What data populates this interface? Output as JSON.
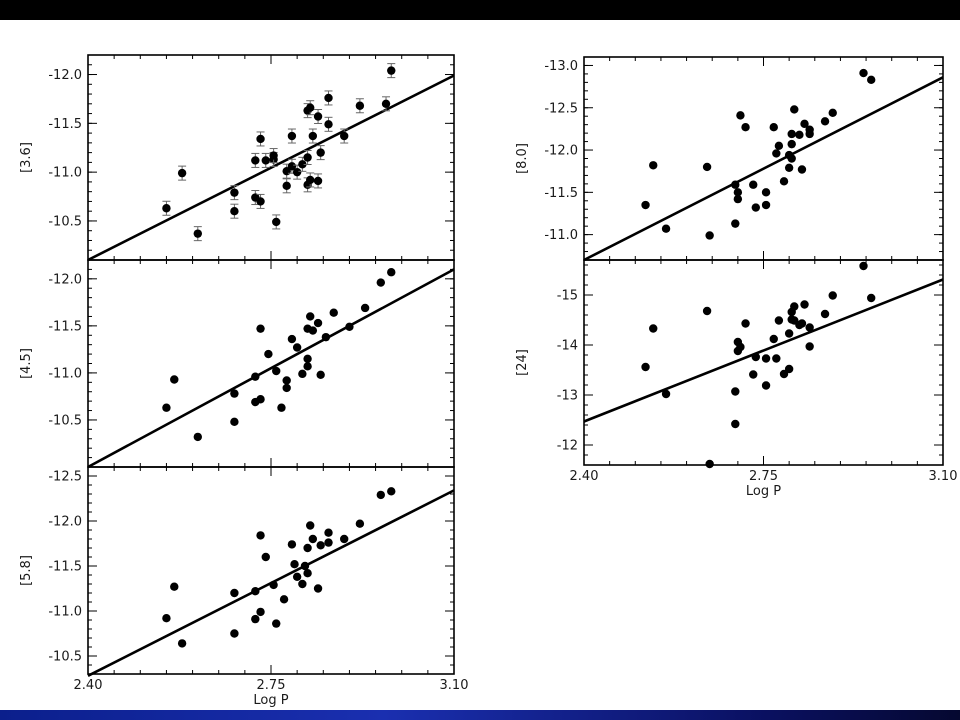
{
  "colors": {
    "top_bar": "#000000",
    "bottom_bar": "#1a2fb0",
    "marker": "#000000",
    "background": "#ffffff"
  },
  "chart_data": [
    {
      "type": "scatter",
      "ylabel": "[3.6]",
      "xlabel": "",
      "xlim": [
        2.4,
        3.1
      ],
      "ylim": [
        -10.1,
        -12.2
      ],
      "y_inverted": true,
      "yticks": [
        "-12.0",
        "-11.5",
        "-11.0",
        "-10.5"
      ],
      "xticks": [],
      "error_bars": true,
      "fit": {
        "x": [
          2.4,
          3.1
        ],
        "y": [
          -10.1,
          -11.99
        ]
      },
      "points": [
        {
          "x": 2.55,
          "y": -10.63
        },
        {
          "x": 2.58,
          "y": -10.99
        },
        {
          "x": 2.61,
          "y": -10.37
        },
        {
          "x": 2.68,
          "y": -10.6
        },
        {
          "x": 2.68,
          "y": -10.79
        },
        {
          "x": 2.72,
          "y": -11.12
        },
        {
          "x": 2.72,
          "y": -10.74
        },
        {
          "x": 2.73,
          "y": -10.7
        },
        {
          "x": 2.73,
          "y": -11.34
        },
        {
          "x": 2.74,
          "y": -11.12
        },
        {
          "x": 2.755,
          "y": -11.13
        },
        {
          "x": 2.755,
          "y": -11.17
        },
        {
          "x": 2.76,
          "y": -10.49
        },
        {
          "x": 2.78,
          "y": -10.86
        },
        {
          "x": 2.78,
          "y": -11.01
        },
        {
          "x": 2.79,
          "y": -11.37
        },
        {
          "x": 2.79,
          "y": -11.06
        },
        {
          "x": 2.8,
          "y": -11.0
        },
        {
          "x": 2.81,
          "y": -11.08
        },
        {
          "x": 2.82,
          "y": -10.87
        },
        {
          "x": 2.82,
          "y": -11.15
        },
        {
          "x": 2.82,
          "y": -11.63
        },
        {
          "x": 2.825,
          "y": -11.66
        },
        {
          "x": 2.825,
          "y": -10.92
        },
        {
          "x": 2.83,
          "y": -11.37
        },
        {
          "x": 2.84,
          "y": -11.57
        },
        {
          "x": 2.84,
          "y": -10.91
        },
        {
          "x": 2.845,
          "y": -11.2
        },
        {
          "x": 2.86,
          "y": -11.49
        },
        {
          "x": 2.86,
          "y": -11.76
        },
        {
          "x": 2.89,
          "y": -11.37
        },
        {
          "x": 2.92,
          "y": -11.68
        },
        {
          "x": 2.97,
          "y": -11.7
        },
        {
          "x": 2.98,
          "y": -12.04
        }
      ]
    },
    {
      "type": "scatter",
      "ylabel": "[4.5]",
      "xlabel": "",
      "xlim": [
        2.4,
        3.1
      ],
      "ylim": [
        -10.0,
        -12.2
      ],
      "y_inverted": true,
      "yticks": [
        "-12.0",
        "-11.5",
        "-11.0",
        "-10.5"
      ],
      "xticks": [],
      "error_bars": false,
      "fit": {
        "x": [
          2.4,
          3.1
        ],
        "y": [
          -10.0,
          -12.1
        ]
      },
      "points": [
        {
          "x": 2.55,
          "y": -10.63
        },
        {
          "x": 2.565,
          "y": -10.93
        },
        {
          "x": 2.61,
          "y": -10.32
        },
        {
          "x": 2.68,
          "y": -10.48
        },
        {
          "x": 2.68,
          "y": -10.78
        },
        {
          "x": 2.72,
          "y": -10.96
        },
        {
          "x": 2.72,
          "y": -10.69
        },
        {
          "x": 2.73,
          "y": -10.72
        },
        {
          "x": 2.73,
          "y": -11.47
        },
        {
          "x": 2.745,
          "y": -11.2
        },
        {
          "x": 2.76,
          "y": -11.02
        },
        {
          "x": 2.77,
          "y": -10.63
        },
        {
          "x": 2.78,
          "y": -10.84
        },
        {
          "x": 2.78,
          "y": -10.92
        },
        {
          "x": 2.79,
          "y": -11.36
        },
        {
          "x": 2.8,
          "y": -11.27
        },
        {
          "x": 2.81,
          "y": -10.99
        },
        {
          "x": 2.82,
          "y": -11.07
        },
        {
          "x": 2.82,
          "y": -11.47
        },
        {
          "x": 2.82,
          "y": -11.15
        },
        {
          "x": 2.825,
          "y": -11.6
        },
        {
          "x": 2.83,
          "y": -11.45
        },
        {
          "x": 2.84,
          "y": -11.53
        },
        {
          "x": 2.845,
          "y": -10.98
        },
        {
          "x": 2.855,
          "y": -11.38
        },
        {
          "x": 2.87,
          "y": -11.64
        },
        {
          "x": 2.9,
          "y": -11.49
        },
        {
          "x": 2.93,
          "y": -11.69
        },
        {
          "x": 2.96,
          "y": -11.96
        },
        {
          "x": 2.98,
          "y": -12.07
        }
      ]
    },
    {
      "type": "scatter",
      "ylabel": "[5.8]",
      "xlabel": "Log P",
      "xlim": [
        2.4,
        3.1
      ],
      "ylim": [
        -10.3,
        -12.6
      ],
      "y_inverted": true,
      "yticks": [
        "-12.5",
        "-12.0",
        "-11.5",
        "-11.0",
        "-10.5"
      ],
      "xticks": [
        "2.40",
        "2.75",
        "3.10"
      ],
      "error_bars": false,
      "fit": {
        "x": [
          2.4,
          3.1
        ],
        "y": [
          -10.28,
          -12.34
        ]
      },
      "points": [
        {
          "x": 2.55,
          "y": -10.92
        },
        {
          "x": 2.565,
          "y": -11.27
        },
        {
          "x": 2.58,
          "y": -10.64
        },
        {
          "x": 2.68,
          "y": -10.75
        },
        {
          "x": 2.68,
          "y": -11.2
        },
        {
          "x": 2.72,
          "y": -11.22
        },
        {
          "x": 2.72,
          "y": -10.91
        },
        {
          "x": 2.73,
          "y": -11.84
        },
        {
          "x": 2.73,
          "y": -10.99
        },
        {
          "x": 2.74,
          "y": -11.6
        },
        {
          "x": 2.755,
          "y": -11.29
        },
        {
          "x": 2.76,
          "y": -10.86
        },
        {
          "x": 2.775,
          "y": -11.13
        },
        {
          "x": 2.79,
          "y": -11.74
        },
        {
          "x": 2.795,
          "y": -11.52
        },
        {
          "x": 2.8,
          "y": -11.38
        },
        {
          "x": 2.81,
          "y": -11.3
        },
        {
          "x": 2.815,
          "y": -11.5
        },
        {
          "x": 2.82,
          "y": -11.7
        },
        {
          "x": 2.82,
          "y": -11.42
        },
        {
          "x": 2.825,
          "y": -11.95
        },
        {
          "x": 2.83,
          "y": -11.8
        },
        {
          "x": 2.84,
          "y": -11.25
        },
        {
          "x": 2.845,
          "y": -11.73
        },
        {
          "x": 2.86,
          "y": -11.87
        },
        {
          "x": 2.86,
          "y": -11.76
        },
        {
          "x": 2.89,
          "y": -11.8
        },
        {
          "x": 2.92,
          "y": -11.97
        },
        {
          "x": 2.96,
          "y": -12.29
        },
        {
          "x": 2.98,
          "y": -12.33
        }
      ]
    },
    {
      "type": "scatter",
      "ylabel": "[8.0]",
      "xlabel": "",
      "xlim": [
        2.4,
        3.1
      ],
      "ylim": [
        -10.7,
        -13.1
      ],
      "y_inverted": true,
      "yticks": [
        "-13.0",
        "-12.5",
        "-12.0",
        "-11.5",
        "-11.0"
      ],
      "xticks": [],
      "error_bars": false,
      "fit": {
        "x": [
          2.4,
          3.1
        ],
        "y": [
          -10.7,
          -12.86
        ]
      },
      "points": [
        {
          "x": 2.52,
          "y": -11.35
        },
        {
          "x": 2.535,
          "y": -11.82
        },
        {
          "x": 2.56,
          "y": -11.07
        },
        {
          "x": 2.64,
          "y": -11.8
        },
        {
          "x": 2.645,
          "y": -10.99
        },
        {
          "x": 2.695,
          "y": -11.13
        },
        {
          "x": 2.695,
          "y": -11.59
        },
        {
          "x": 2.7,
          "y": -11.5
        },
        {
          "x": 2.7,
          "y": -11.42
        },
        {
          "x": 2.705,
          "y": -12.41
        },
        {
          "x": 2.715,
          "y": -12.27
        },
        {
          "x": 2.73,
          "y": -11.59
        },
        {
          "x": 2.735,
          "y": -11.32
        },
        {
          "x": 2.755,
          "y": -11.35
        },
        {
          "x": 2.755,
          "y": -11.5
        },
        {
          "x": 2.77,
          "y": -12.27
        },
        {
          "x": 2.775,
          "y": -11.96
        },
        {
          "x": 2.78,
          "y": -12.05
        },
        {
          "x": 2.79,
          "y": -11.63
        },
        {
          "x": 2.8,
          "y": -11.79
        },
        {
          "x": 2.8,
          "y": -11.94
        },
        {
          "x": 2.805,
          "y": -11.9
        },
        {
          "x": 2.805,
          "y": -12.19
        },
        {
          "x": 2.805,
          "y": -12.07
        },
        {
          "x": 2.81,
          "y": -12.48
        },
        {
          "x": 2.82,
          "y": -12.18
        },
        {
          "x": 2.825,
          "y": -11.77
        },
        {
          "x": 2.83,
          "y": -12.31
        },
        {
          "x": 2.84,
          "y": -12.19
        },
        {
          "x": 2.84,
          "y": -12.24
        },
        {
          "x": 2.87,
          "y": -12.34
        },
        {
          "x": 2.885,
          "y": -12.44
        },
        {
          "x": 2.945,
          "y": -12.91
        },
        {
          "x": 2.96,
          "y": -12.83
        }
      ]
    },
    {
      "type": "scatter",
      "ylabel": "[24]",
      "xlabel": "Log P",
      "xlim": [
        2.4,
        3.1
      ],
      "ylim": [
        -11.6,
        -15.7
      ],
      "y_inverted": true,
      "yticks": [
        "-15",
        "-14",
        "-13",
        "-12"
      ],
      "xticks": [
        "2.40",
        "2.75",
        "3.10"
      ],
      "error_bars": false,
      "fit": {
        "x": [
          2.4,
          3.1
        ],
        "y": [
          -12.47,
          -15.31
        ]
      },
      "points": [
        {
          "x": 2.52,
          "y": -13.56
        },
        {
          "x": 2.535,
          "y": -14.33
        },
        {
          "x": 2.56,
          "y": -13.02
        },
        {
          "x": 2.64,
          "y": -14.68
        },
        {
          "x": 2.645,
          "y": -11.62
        },
        {
          "x": 2.695,
          "y": -12.42
        },
        {
          "x": 2.695,
          "y": -13.07
        },
        {
          "x": 2.7,
          "y": -13.88
        },
        {
          "x": 2.7,
          "y": -14.06
        },
        {
          "x": 2.705,
          "y": -13.96
        },
        {
          "x": 2.715,
          "y": -14.43
        },
        {
          "x": 2.73,
          "y": -13.41
        },
        {
          "x": 2.735,
          "y": -13.76
        },
        {
          "x": 2.755,
          "y": -13.73
        },
        {
          "x": 2.755,
          "y": -13.19
        },
        {
          "x": 2.77,
          "y": -14.12
        },
        {
          "x": 2.775,
          "y": -13.73
        },
        {
          "x": 2.78,
          "y": -14.49
        },
        {
          "x": 2.79,
          "y": -13.42
        },
        {
          "x": 2.8,
          "y": -14.23
        },
        {
          "x": 2.8,
          "y": -13.52
        },
        {
          "x": 2.805,
          "y": -14.51
        },
        {
          "x": 2.805,
          "y": -14.66
        },
        {
          "x": 2.81,
          "y": -14.77
        },
        {
          "x": 2.81,
          "y": -14.49
        },
        {
          "x": 2.82,
          "y": -14.4
        },
        {
          "x": 2.825,
          "y": -14.43
        },
        {
          "x": 2.83,
          "y": -14.81
        },
        {
          "x": 2.84,
          "y": -13.97
        },
        {
          "x": 2.84,
          "y": -14.35
        },
        {
          "x": 2.87,
          "y": -14.62
        },
        {
          "x": 2.885,
          "y": -14.99
        },
        {
          "x": 2.945,
          "y": -15.58
        },
        {
          "x": 2.96,
          "y": -14.94
        }
      ]
    }
  ]
}
